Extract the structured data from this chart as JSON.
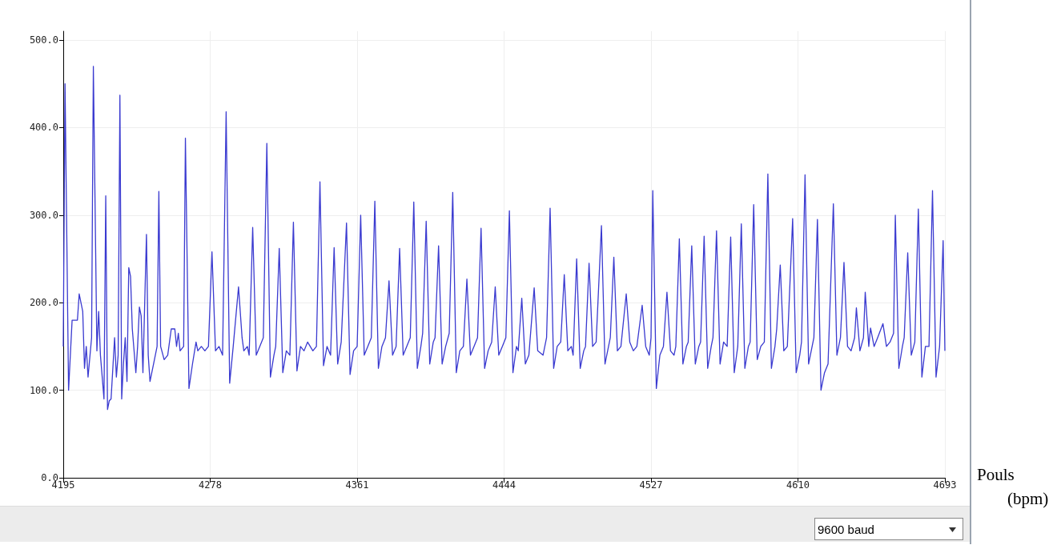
{
  "chart_data": {
    "type": "line",
    "ylabel": "Pouls (bpm)",
    "annotations": [
      "9600 baud"
    ],
    "x": [
      4195,
      4196,
      4198,
      4200,
      4203,
      4204,
      4206,
      4207,
      4208,
      4209,
      4211,
      4212,
      4214,
      4215,
      4216,
      4218,
      4219,
      4220,
      4221,
      4222,
      4224,
      4225,
      4226,
      4227,
      4228,
      4229,
      4230,
      4231,
      4232,
      4233,
      4234,
      4236,
      4237,
      4238,
      4239,
      4240,
      4242,
      4243,
      4244,
      4246,
      4248,
      4249,
      4250,
      4252,
      4254,
      4256,
      4258,
      4259,
      4260,
      4261,
      4263,
      4264,
      4266,
      4268,
      4270,
      4271,
      4273,
      4275,
      4277,
      4279,
      4281,
      4283,
      4285,
      4287,
      4289,
      4291,
      4294,
      4296,
      4297,
      4299,
      4300,
      4302,
      4304,
      4306,
      4308,
      4310,
      4312,
      4314,
      4315,
      4317,
      4319,
      4321,
      4323,
      4325,
      4327,
      4329,
      4331,
      4333,
      4336,
      4338,
      4340,
      4342,
      4344,
      4346,
      4348,
      4350,
      4352,
      4355,
      4357,
      4359,
      4361,
      4363,
      4365,
      4367,
      4369,
      4371,
      4373,
      4375,
      4377,
      4379,
      4381,
      4383,
      4385,
      4387,
      4389,
      4391,
      4393,
      4395,
      4397,
      4398,
      4400,
      4402,
      4404,
      4405,
      4407,
      4409,
      4411,
      4413,
      4415,
      4417,
      4419,
      4421,
      4423,
      4425,
      4427,
      4429,
      4431,
      4433,
      4435,
      4437,
      4439,
      4441,
      4443,
      4445,
      4447,
      4449,
      4451,
      4452,
      4454,
      4456,
      4458,
      4461,
      4463,
      4466,
      4468,
      4470,
      4472,
      4474,
      4476,
      4478,
      4480,
      4482,
      4483,
      4485,
      4487,
      4489,
      4490,
      4492,
      4494,
      4496,
      4499,
      4501,
      4503,
      4504,
      4506,
      4508,
      4510,
      4513,
      4515,
      4517,
      4519,
      4522,
      4524,
      4526,
      4527,
      4528,
      4530,
      4532,
      4534,
      4536,
      4538,
      4540,
      4541,
      4543,
      4545,
      4547,
      4548,
      4550,
      4552,
      4554,
      4555,
      4557,
      4559,
      4561,
      4562,
      4564,
      4566,
      4568,
      4570,
      4572,
      4574,
      4576,
      4578,
      4580,
      4582,
      4583,
      4585,
      4587,
      4589,
      4591,
      4593,
      4595,
      4597,
      4598,
      4600,
      4602,
      4604,
      4607,
      4609,
      4611,
      4612,
      4614,
      4616,
      4618,
      4619,
      4621,
      4623,
      4625,
      4627,
      4630,
      4632,
      4634,
      4636,
      4638,
      4640,
      4642,
      4643,
      4645,
      4647,
      4648,
      4650,
      4651,
      4653,
      4655,
      4658,
      4660,
      4662,
      4664,
      4665,
      4667,
      4669,
      4670,
      4672,
      4674,
      4676,
      4678,
      4680,
      4682,
      4684,
      4686,
      4688,
      4690,
      4692,
      4693
    ],
    "series": [
      {
        "color": "#3a3ad0",
        "values": [
          150,
          450,
          100,
          180,
          180,
          210,
          190,
          125,
          150,
          115,
          160,
          470,
          145,
          190,
          140,
          90,
          322,
          78,
          88,
          90,
          160,
          115,
          140,
          437,
          90,
          130,
          160,
          110,
          240,
          230,
          170,
          120,
          150,
          195,
          185,
          120,
          278,
          140,
          110,
          130,
          150,
          327,
          150,
          135,
          140,
          170,
          170,
          150,
          165,
          145,
          150,
          388,
          102,
          130,
          155,
          145,
          150,
          145,
          150,
          258,
          145,
          150,
          140,
          418,
          108,
          150,
          218,
          160,
          145,
          150,
          140,
          286,
          140,
          150,
          160,
          382,
          115,
          140,
          150,
          262,
          120,
          145,
          140,
          292,
          122,
          150,
          145,
          155,
          145,
          150,
          338,
          128,
          150,
          140,
          263,
          130,
          155,
          291,
          118,
          145,
          150,
          300,
          140,
          150,
          160,
          316,
          125,
          150,
          160,
          225,
          140,
          150,
          262,
          140,
          150,
          160,
          315,
          125,
          150,
          165,
          293,
          130,
          155,
          160,
          265,
          130,
          150,
          165,
          326,
          120,
          145,
          150,
          227,
          140,
          150,
          160,
          285,
          125,
          145,
          155,
          218,
          140,
          150,
          160,
          305,
          120,
          150,
          145,
          205,
          130,
          140,
          217,
          145,
          140,
          160,
          308,
          125,
          150,
          155,
          232,
          145,
          150,
          140,
          250,
          125,
          145,
          150,
          245,
          150,
          155,
          288,
          130,
          150,
          160,
          252,
          145,
          150,
          210,
          155,
          145,
          150,
          197,
          150,
          140,
          160,
          328,
          102,
          140,
          150,
          212,
          145,
          140,
          150,
          273,
          130,
          150,
          155,
          265,
          130,
          150,
          155,
          276,
          125,
          150,
          160,
          282,
          130,
          155,
          150,
          275,
          120,
          150,
          290,
          125,
          150,
          155,
          312,
          135,
          150,
          155,
          347,
          125,
          150,
          170,
          243,
          145,
          150,
          296,
          120,
          140,
          155,
          346,
          130,
          150,
          160,
          295,
          100,
          120,
          130,
          313,
          140,
          160,
          246,
          150,
          145,
          160,
          194,
          145,
          160,
          212,
          150,
          171,
          150,
          160,
          176,
          150,
          155,
          165,
          300,
          125,
          150,
          160,
          257,
          140,
          155,
          307,
          115,
          150,
          150,
          328,
          115,
          150,
          271,
          145
        ]
      }
    ],
    "xlim": [
      4195,
      4693
    ],
    "xticks": [
      4195,
      4278,
      4361,
      4444,
      4527,
      4610,
      4693
    ],
    "ylim": [
      0,
      510
    ],
    "yticks": [
      {
        "value": 0,
        "label": "0.0"
      },
      {
        "value": 100,
        "label": "100.0"
      },
      {
        "value": 200,
        "label": "200.0"
      },
      {
        "value": 300,
        "label": "300.0"
      },
      {
        "value": 400,
        "label": "400.0"
      },
      {
        "value": 500,
        "label": "500.0"
      }
    ],
    "grid": true,
    "marker": "none",
    "line_style": "solid"
  }
}
